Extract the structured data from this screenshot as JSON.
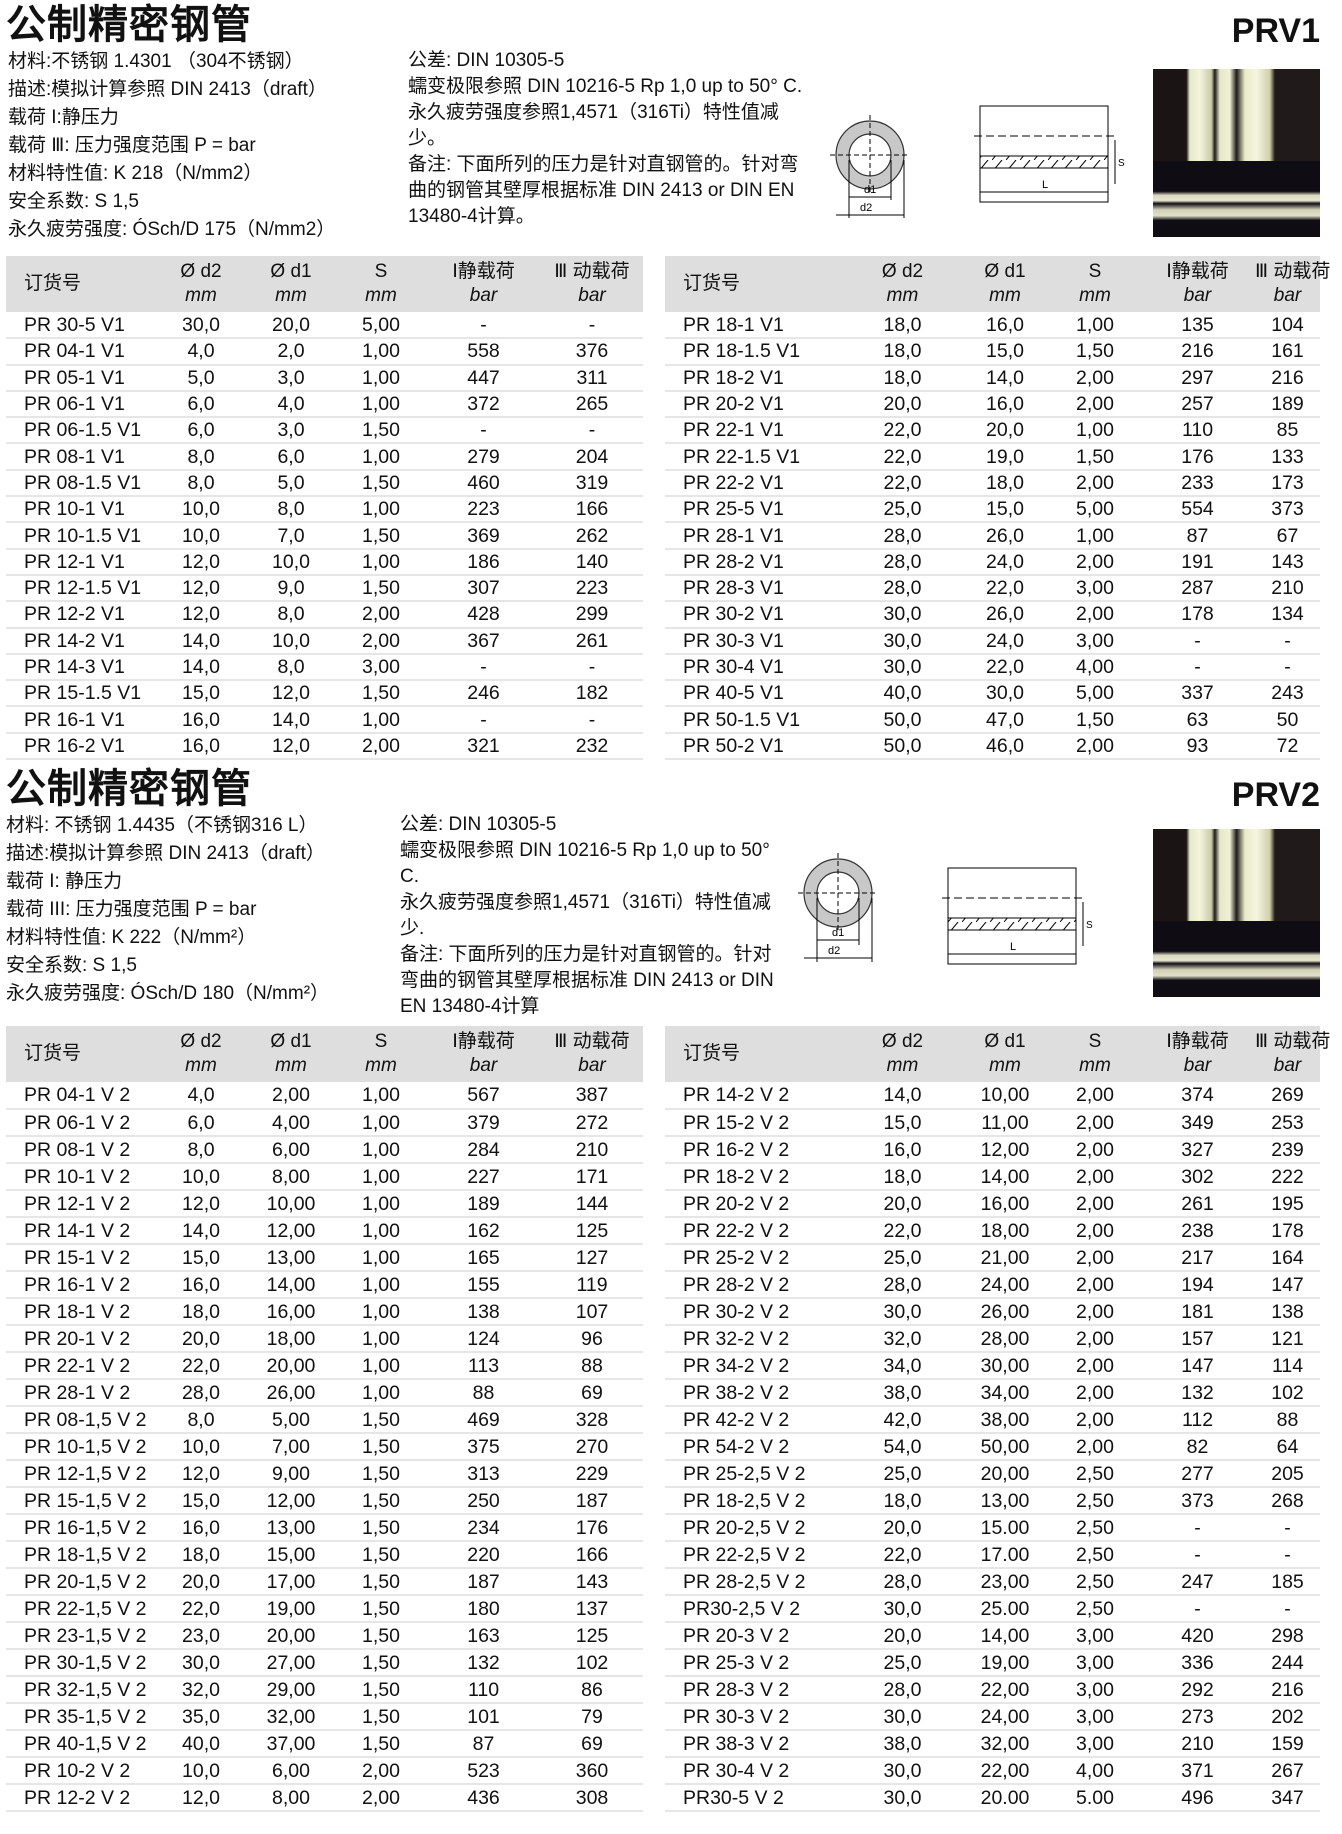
{
  "headers": {
    "order": "订货号",
    "d2": "Ø d2",
    "d1": "Ø d1",
    "s": "S",
    "static": "Ⅰ静载荷",
    "dynamic": "Ⅲ 动载荷",
    "mm": "mm",
    "bar": "bar"
  },
  "prv1": {
    "title": "公制精密钢管",
    "code": "PRV1",
    "info_left": [
      "材料:不锈钢 1.4301 （304不锈钢）",
      "描述:模拟计算参照 DIN 2413（draft）",
      "载荷 I:静压力",
      "载荷 Ⅲ: 压力强度范围 P = bar",
      "材料特性值: K 218（N/mm2）",
      "安全系数: S 1,5",
      "永久疲劳强度: ÓSch/D 175（N/mm2）"
    ],
    "info_right": "公差: DIN 10305-5\n蠕变极限参照 DIN 10216-5 Rp 1,0 up to 50° C.\n永久疲劳强度参照1,4571（316Ti）特性值减少。\n备注: 下面所列的压力是针对直钢管的。针对弯曲的钢管其壁厚根据标准 DIN 2413 or DIN EN 13480-4计算。",
    "diagram": {
      "d1": "d1",
      "d2": "d2",
      "s": "S",
      "l": "L"
    },
    "table_left": [
      [
        "PR 30-5 V1",
        "30,0",
        "20,0",
        "5,00",
        "-",
        "-"
      ],
      [
        "PR 04-1 V1",
        "4,0",
        "2,0",
        "1,00",
        "558",
        "376"
      ],
      [
        "PR 05-1 V1",
        "5,0",
        "3,0",
        "1,00",
        "447",
        "311"
      ],
      [
        "PR 06-1 V1",
        "6,0",
        "4,0",
        "1,00",
        "372",
        "265"
      ],
      [
        "PR 06-1.5 V1",
        "6,0",
        "3,0",
        "1,50",
        "-",
        "-"
      ],
      [
        "PR 08-1 V1",
        "8,0",
        "6,0",
        "1,00",
        "279",
        "204"
      ],
      [
        "PR 08-1.5 V1",
        "8,0",
        "5,0",
        "1,50",
        "460",
        "319"
      ],
      [
        "PR 10-1 V1",
        "10,0",
        "8,0",
        "1,00",
        "223",
        "166"
      ],
      [
        "PR 10-1.5 V1",
        "10,0",
        "7,0",
        "1,50",
        "369",
        "262"
      ],
      [
        "PR 12-1 V1",
        "12,0",
        "10,0",
        "1,00",
        "186",
        "140"
      ],
      [
        "PR 12-1.5 V1",
        "12,0",
        "9,0",
        "1,50",
        "307",
        "223"
      ],
      [
        "PR 12-2 V1",
        "12,0",
        "8,0",
        "2,00",
        "428",
        "299"
      ],
      [
        "PR 14-2 V1",
        "14,0",
        "10,0",
        "2,00",
        "367",
        "261"
      ],
      [
        "PR 14-3 V1",
        "14,0",
        "8,0",
        "3,00",
        "-",
        "-"
      ],
      [
        "PR 15-1.5 V1",
        "15,0",
        "12,0",
        "1,50",
        "246",
        "182"
      ],
      [
        "PR 16-1 V1",
        "16,0",
        "14,0",
        "1,00",
        "-",
        "-"
      ],
      [
        "PR 16-2 V1",
        "16,0",
        "12,0",
        "2,00",
        "321",
        "232"
      ]
    ],
    "table_right": [
      [
        "PR 18-1 V1",
        "18,0",
        "16,0",
        "1,00",
        "135",
        "104"
      ],
      [
        "PR 18-1.5 V1",
        "18,0",
        "15,0",
        "1,50",
        "216",
        "161"
      ],
      [
        "PR 18-2 V1",
        "18,0",
        "14,0",
        "2,00",
        "297",
        "216"
      ],
      [
        "PR 20-2 V1",
        "20,0",
        "16,0",
        "2,00",
        "257",
        "189"
      ],
      [
        "PR 22-1 V1",
        "22,0",
        "20,0",
        "1,00",
        "110",
        "85"
      ],
      [
        "PR 22-1.5 V1",
        "22,0",
        "19,0",
        "1,50",
        "176",
        "133"
      ],
      [
        "PR 22-2 V1",
        "22,0",
        "18,0",
        "2,00",
        "233",
        "173"
      ],
      [
        "PR 25-5 V1",
        "25,0",
        "15,0",
        "5,00",
        "554",
        "373"
      ],
      [
        "PR 28-1 V1",
        "28,0",
        "26,0",
        "1,00",
        "87",
        "67"
      ],
      [
        "PR 28-2 V1",
        "28,0",
        "24,0",
        "2,00",
        "191",
        "143"
      ],
      [
        "PR 28-3 V1",
        "28,0",
        "22,0",
        "3,00",
        "287",
        "210"
      ],
      [
        "PR 30-2 V1",
        "30,0",
        "26,0",
        "2,00",
        "178",
        "134"
      ],
      [
        "PR 30-3 V1",
        "30,0",
        "24,0",
        "3,00",
        "-",
        "-"
      ],
      [
        "PR 30-4 V1",
        "30,0",
        "22,0",
        "4,00",
        "-",
        "-"
      ],
      [
        "PR 40-5 V1",
        "40,0",
        "30,0",
        "5,00",
        "337",
        "243"
      ],
      [
        "PR 50-1.5 V1",
        "50,0",
        "47,0",
        "1,50",
        "63",
        "50"
      ],
      [
        "PR 50-2 V1",
        "50,0",
        "46,0",
        "2,00",
        "93",
        "72"
      ]
    ]
  },
  "prv2": {
    "title": "公制精密钢管",
    "code": "PRV2",
    "info_left": [
      "材料: 不锈钢 1.4435（不锈钢316 L）",
      "描述:模拟计算参照 DIN 2413（draft）",
      "载荷 I: 静压力",
      "载荷 III: 压力强度范围 P = bar",
      "材料特性值: K 222（N/mm²）",
      "安全系数: S 1,5",
      "永久疲劳强度: ÓSch/D 180（N/mm²）"
    ],
    "info_right": "公差: DIN 10305-5\n蠕变极限参照 DIN 10216-5 Rp 1,0 up to 50° C.\n永久疲劳强度参照1,4571（316Ti）特性值减少.\n备注: 下面所列的压力是针对直钢管的。针对弯曲的钢管其壁厚根据标准 DIN 2413 or DIN EN 13480-4计算",
    "diagram": {
      "d1": "d1",
      "d2": "d2",
      "s": "S",
      "l": "L"
    },
    "table_left": [
      [
        "PR 04-1 V 2",
        "4,0",
        "2,00",
        "1,00",
        "567",
        "387"
      ],
      [
        "PR 06-1 V 2",
        "6,0",
        "4,00",
        "1,00",
        "379",
        "272"
      ],
      [
        "PR 08-1 V 2",
        "8,0",
        "6,00",
        "1,00",
        "284",
        "210"
      ],
      [
        "PR 10-1 V 2",
        "10,0",
        "8,00",
        "1,00",
        "227",
        "171"
      ],
      [
        "PR 12-1 V 2",
        "12,0",
        "10,00",
        "1,00",
        "189",
        "144"
      ],
      [
        "PR 14-1 V 2",
        "14,0",
        "12,00",
        "1,00",
        "162",
        "125"
      ],
      [
        "PR 15-1 V 2",
        "15,0",
        "13,00",
        "1,00",
        "165",
        "127"
      ],
      [
        "PR 16-1 V 2",
        "16,0",
        "14,00",
        "1,00",
        "155",
        "119"
      ],
      [
        "PR 18-1 V 2",
        "18,0",
        "16,00",
        "1,00",
        "138",
        "107"
      ],
      [
        "PR 20-1 V 2",
        "20,0",
        "18,00",
        "1,00",
        "124",
        "96"
      ],
      [
        "PR 22-1 V 2",
        "22,0",
        "20,00",
        "1,00",
        "113",
        "88"
      ],
      [
        "PR 28-1 V 2",
        "28,0",
        "26,00",
        "1,00",
        "88",
        "69"
      ],
      [
        "PR 08-1,5 V 2",
        "8,0",
        "5,00",
        "1,50",
        "469",
        "328"
      ],
      [
        "PR 10-1,5 V 2",
        "10,0",
        "7,00",
        "1,50",
        "375",
        "270"
      ],
      [
        "PR 12-1,5 V 2",
        "12,0",
        "9,00",
        "1,50",
        "313",
        "229"
      ],
      [
        "PR 15-1,5 V 2",
        "15,0",
        "12,00",
        "1,50",
        "250",
        "187"
      ],
      [
        "PR 16-1,5 V 2",
        "16,0",
        "13,00",
        "1,50",
        "234",
        "176"
      ],
      [
        "PR 18-1,5 V 2",
        "18,0",
        "15,00",
        "1,50",
        "220",
        "166"
      ],
      [
        "PR 20-1,5 V 2",
        "20,0",
        "17,00",
        "1,50",
        "187",
        "143"
      ],
      [
        "PR 22-1,5 V 2",
        "22,0",
        "19,00",
        "1,50",
        "180",
        "137"
      ],
      [
        "PR 23-1,5 V 2",
        "23,0",
        "20,00",
        "1,50",
        "163",
        "125"
      ],
      [
        "PR 30-1,5 V 2",
        "30,0",
        "27,00",
        "1,50",
        "132",
        "102"
      ],
      [
        "PR 32-1,5 V 2",
        "32,0",
        "29,00",
        "1,50",
        "110",
        "86"
      ],
      [
        "PR 35-1,5 V 2",
        "35,0",
        "32,00",
        "1,50",
        "101",
        "79"
      ],
      [
        "PR 40-1,5 V 2",
        "40,0",
        "37,00",
        "1,50",
        "87",
        "69"
      ],
      [
        "PR 10-2 V 2",
        "10,0",
        "6,00",
        "2,00",
        "523",
        "360"
      ],
      [
        "PR 12-2 V 2",
        "12,0",
        "8,00",
        "2,00",
        "436",
        "308"
      ]
    ],
    "table_right": [
      [
        "PR 14-2 V 2",
        "14,0",
        "10,00",
        "2,00",
        "374",
        "269"
      ],
      [
        "PR 15-2 V 2",
        "15,0",
        "11,00",
        "2,00",
        "349",
        "253"
      ],
      [
        "PR 16-2 V 2",
        "16,0",
        "12,00",
        "2,00",
        "327",
        "239"
      ],
      [
        "PR 18-2 V 2",
        "18,0",
        "14,00",
        "2,00",
        "302",
        "222"
      ],
      [
        "PR 20-2 V 2",
        "20,0",
        "16,00",
        "2,00",
        "261",
        "195"
      ],
      [
        "PR 22-2 V 2",
        "22,0",
        "18,00",
        "2,00",
        "238",
        "178"
      ],
      [
        "PR 25-2 V 2",
        "25,0",
        "21,00",
        "2,00",
        "217",
        "164"
      ],
      [
        "PR 28-2 V 2",
        "28,0",
        "24,00",
        "2,00",
        "194",
        "147"
      ],
      [
        "PR 30-2 V 2",
        "30,0",
        "26,00",
        "2,00",
        "181",
        "138"
      ],
      [
        "PR 32-2 V 2",
        "32,0",
        "28,00",
        "2,00",
        "157",
        "121"
      ],
      [
        "PR 34-2 V 2",
        "34,0",
        "30,00",
        "2,00",
        "147",
        "114"
      ],
      [
        "PR 38-2 V 2",
        "38,0",
        "34,00",
        "2,00",
        "132",
        "102"
      ],
      [
        "PR 42-2 V 2",
        "42,0",
        "38,00",
        "2,00",
        "112",
        "88"
      ],
      [
        "PR 54-2 V 2",
        "54,0",
        "50,00",
        "2,00",
        "82",
        "64"
      ],
      [
        "PR 25-2,5 V 2",
        "25,0",
        "20,00",
        "2,50",
        "277",
        "205"
      ],
      [
        "PR 18-2,5 V 2",
        "18,0",
        "13,00",
        "2,50",
        "373",
        "268"
      ],
      [
        "PR 20-2,5 V 2",
        "20,0",
        "15.00",
        "2,50",
        "-",
        "-"
      ],
      [
        "PR 22-2,5 V 2",
        "22,0",
        "17.00",
        "2,50",
        "-",
        "-"
      ],
      [
        "PR 28-2,5 V 2",
        "28,0",
        "23,00",
        "2,50",
        "247",
        "185"
      ],
      [
        "PR30-2,5 V 2",
        "30,0",
        "25.00",
        "2,50",
        "-",
        "-"
      ],
      [
        "PR 20-3 V 2",
        "20,0",
        "14,00",
        "3,00",
        "420",
        "298"
      ],
      [
        "PR 25-3 V 2",
        "25,0",
        "19,00",
        "3,00",
        "336",
        "244"
      ],
      [
        "PR 28-3 V 2",
        "28,0",
        "22,00",
        "3,00",
        "292",
        "216"
      ],
      [
        "PR 30-3 V 2",
        "30,0",
        "24,00",
        "3,00",
        "273",
        "202"
      ],
      [
        "PR 38-3 V 2",
        "38,0",
        "32,00",
        "3,00",
        "210",
        "159"
      ],
      [
        "PR 30-4 V 2",
        "30,0",
        "22,00",
        "4,00",
        "371",
        "267"
      ],
      [
        "PR30-5 V 2",
        "30,0",
        "20.00",
        "5.00",
        "496",
        "347"
      ]
    ]
  }
}
